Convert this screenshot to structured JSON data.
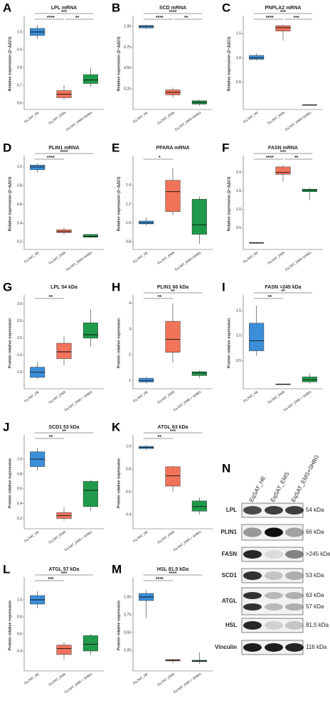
{
  "chart_data": [
    {
      "type": "box",
      "letter": "A",
      "title": "LPL mRNA",
      "ylabel": "Relative expression (2−ΔΔCt)",
      "categories": [
        "Eq.SAT_HE",
        "Eq.SAT_EMS",
        "Eq.SAT_EMS+SHBG"
      ],
      "ylim": [
        0.58,
        1.06
      ],
      "yticks": [
        0.6,
        0.7,
        0.8,
        0.9,
        {
          "value": 1,
          "label": "1.0"
        }
      ],
      "boxes": [
        {
          "color": "#3b8fd9",
          "low": 0.96,
          "q1": 0.98,
          "median": 1.0,
          "q3": 1.02,
          "high": 1.04
        },
        {
          "color": "#f0735a",
          "low": 0.62,
          "q1": 0.63,
          "median": 0.65,
          "q3": 0.67,
          "high": 0.7
        },
        {
          "color": "#1e9a4a",
          "low": 0.69,
          "q1": 0.71,
          "median": 0.73,
          "q3": 0.76,
          "high": 0.8
        }
      ],
      "annotations": [
        "****",
        "***",
        "**"
      ]
    },
    {
      "type": "box",
      "letter": "B",
      "title": "SCD mRNA",
      "ylabel": "Relative expression (2−ΔΔCt)",
      "categories": [
        "Eq.SAT_HE",
        "Eq.SAT_EMS",
        "Eq.SAT_EMS+SHBG"
      ],
      "ylim": [
        0.04,
        1.06
      ],
      "yticks": [
        0.25,
        {
          "value": 0.5,
          "label": "0.50"
        },
        0.75,
        {
          "value": 1,
          "label": "1.00"
        }
      ],
      "boxes": [
        {
          "color": "#3b8fd9",
          "low": 0.97,
          "q1": 0.98,
          "median": 1.0,
          "q3": 1.01,
          "high": 1.02
        },
        {
          "color": "#f0735a",
          "low": 0.15,
          "q1": 0.18,
          "median": 0.21,
          "q3": 0.24,
          "high": 0.27
        },
        {
          "color": "#1e9a4a",
          "low": 0.05,
          "q1": 0.07,
          "median": 0.09,
          "q3": 0.11,
          "high": 0.12
        }
      ],
      "annotations": [
        "****",
        "****",
        "**"
      ]
    },
    {
      "type": "box",
      "letter": "C",
      "title": "PNPLA2 mRNA",
      "ylabel": "Relative expression (2−ΔΔCt)",
      "categories": [
        "Eq.SAT_HE",
        "Eq.SAT_EMS",
        "Eq.SAT_EMS+SHBG"
      ],
      "ylim": [
        0,
        1.75
      ],
      "yticks": [
        0.5,
        {
          "value": 1,
          "label": "1.0"
        },
        1.5
      ],
      "boxes": [
        {
          "color": "#3b8fd9",
          "low": 0.95,
          "q1": 0.97,
          "median": 1.0,
          "q3": 1.05,
          "high": 1.09
        },
        {
          "color": "#f0735a",
          "low": 1.35,
          "q1": 1.55,
          "median": 1.62,
          "q3": 1.66,
          "high": 1.68
        },
        {
          "color": "#1e9a4a",
          "low": 0.02,
          "q1": 0.03,
          "median": 0.03,
          "q3": 0.04,
          "high": 0.04
        }
      ],
      "annotations": [
        "****",
        "***",
        "***"
      ]
    },
    {
      "type": "box",
      "letter": "D",
      "title": "PLIN1 mRNA",
      "ylabel": "Relative expression (2−ΔΔCt)",
      "categories": [
        "Eq.SAT_HE",
        "Eq.SAT_EMS",
        "Eq.SAT_EMS+SHBG"
      ],
      "ylim": [
        0.15,
        1.06
      ],
      "yticks": [
        0.2,
        0.4,
        0.6,
        0.8,
        {
          "value": 1,
          "label": "1.0"
        }
      ],
      "boxes": [
        {
          "color": "#3b8fd9",
          "low": 0.94,
          "q1": 0.97,
          "median": 1.0,
          "q3": 1.02,
          "high": 1.04
        },
        {
          "color": "#f0735a",
          "low": 0.28,
          "q1": 0.3,
          "median": 0.31,
          "q3": 0.33,
          "high": 0.35
        },
        {
          "color": "#1e9a4a",
          "low": 0.24,
          "q1": 0.25,
          "median": 0.26,
          "q3": 0.28,
          "high": 0.28
        }
      ],
      "annotations": [
        "****",
        "****"
      ]
    },
    {
      "type": "box",
      "letter": "E",
      "title": "PPARA mRNA",
      "ylabel": "Relative expression (2−ΔΔCt)",
      "categories": [
        "Eq.SAT_HE",
        "Eq.SAT_EMS",
        "Eq.SAT_EMS+SHBG"
      ],
      "ylim": [
        0.75,
        1.65
      ],
      "yticks": [
        0.8,
        {
          "value": 1,
          "label": "1.0"
        },
        1.2,
        1.4
      ],
      "boxes": [
        {
          "color": "#3b8fd9",
          "low": 0.97,
          "q1": 0.99,
          "median": 1.0,
          "q3": 1.02,
          "high": 1.06
        },
        {
          "color": "#f0735a",
          "low": 1.08,
          "q1": 1.12,
          "median": 1.33,
          "q3": 1.45,
          "high": 1.58
        },
        {
          "color": "#1e9a4a",
          "low": 0.78,
          "q1": 0.88,
          "median": 0.98,
          "q3": 1.25,
          "high": 1.28
        }
      ],
      "annotations": [
        "*"
      ]
    },
    {
      "type": "box",
      "letter": "F",
      "title": "FASN mRNA",
      "ylabel": "Relative expression (2−ΔΔCt)",
      "categories": [
        "Eq.SAT_HE",
        "Eq.SAT_EMS",
        "Eq.SAT_EMS+SHBG"
      ],
      "ylim": [
        0,
        2.3
      ],
      "yticks": [
        0.5,
        {
          "value": 1,
          "label": "1.0"
        },
        1.5,
        {
          "value": 2,
          "label": "2.0"
        }
      ],
      "boxes": [
        {
          "color": "#3b8fd9",
          "low": 0.08,
          "q1": 0.09,
          "median": 0.1,
          "q3": 0.11,
          "high": 0.12
        },
        {
          "color": "#f0735a",
          "low": 1.75,
          "q1": 1.95,
          "median": 2.0,
          "q3": 2.15,
          "high": 2.2
        },
        {
          "color": "#1e9a4a",
          "low": 1.25,
          "q1": 1.48,
          "median": 1.52,
          "q3": 1.55,
          "high": 1.58
        }
      ],
      "annotations": [
        "****",
        "***",
        "**"
      ]
    },
    {
      "type": "box",
      "letter": "G",
      "title": "LPL 54 kDa",
      "ylabel": "Protein relative expression",
      "categories": [
        "Eq.SAT_HE",
        "Eq.SAT_EMS",
        "Eq.SAT_EMS + SHBG"
      ],
      "ylim": [
        0.6,
        3.1
      ],
      "yticks": [
        {
          "value": 1,
          "label": "1.0"
        },
        1.5,
        {
          "value": 2,
          "label": "2.0"
        },
        2.5,
        {
          "value": 3,
          "label": "3.0"
        }
      ],
      "boxes": [
        {
          "color": "#3b8fd9",
          "low": 0.8,
          "q1": 0.85,
          "median": 1.0,
          "q3": 1.15,
          "high": 1.3
        },
        {
          "color": "#f0735a",
          "low": 1.2,
          "q1": 1.4,
          "median": 1.6,
          "q3": 1.85,
          "high": 2.05
        },
        {
          "color": "#1e9a4a",
          "low": 1.75,
          "q1": 2.0,
          "median": 2.1,
          "q3": 2.45,
          "high": 2.85
        }
      ],
      "annotations": [
        "**"
      ]
    },
    {
      "type": "box",
      "letter": "H",
      "title": "PLIN1 66 kDa",
      "ylabel": "Protein relative expression",
      "categories": [
        "Eq.SAT_HE",
        "Eq.SAT_EMS",
        "Eq.SAT_EMS + SHBG"
      ],
      "ylim": [
        0.8,
        4.1
      ],
      "yticks": [
        1,
        2,
        3,
        4
      ],
      "boxes": [
        {
          "color": "#3b8fd9",
          "low": 0.9,
          "q1": 0.95,
          "median": 1.0,
          "q3": 1.1,
          "high": 1.15
        },
        {
          "color": "#f0735a",
          "low": 1.7,
          "q1": 2.1,
          "median": 2.6,
          "q3": 3.3,
          "high": 4.0
        },
        {
          "color": "#1e9a4a",
          "low": 1.1,
          "q1": 1.2,
          "median": 1.3,
          "q3": 1.35,
          "high": 1.4
        }
      ],
      "annotations": [
        "**",
        "**"
      ]
    },
    {
      "type": "box",
      "letter": "I",
      "title": "FASN >245 kDa",
      "ylabel": "Protein relative expression",
      "categories": [
        "Eq.SAT_HE",
        "Eq.SAT_EMS",
        "Eq.SAT_EMS + SHBG"
      ],
      "ylim": [
        0,
        1.7
      ],
      "yticks": [
        0.5,
        {
          "value": 1,
          "label": "1.0"
        },
        1.5
      ],
      "boxes": [
        {
          "color": "#3b8fd9",
          "low": 0.6,
          "q1": 0.7,
          "median": 0.9,
          "q3": 1.25,
          "high": 1.6
        },
        {
          "color": "#f0735a",
          "low": 0.02,
          "q1": 0.03,
          "median": 0.03,
          "q3": 0.04,
          "high": 0.04
        },
        {
          "color": "#1e9a4a",
          "low": 0.05,
          "q1": 0.08,
          "median": 0.12,
          "q3": 0.18,
          "high": 0.25
        }
      ],
      "annotations": [
        "**",
        "**"
      ]
    },
    {
      "type": "box",
      "letter": "J",
      "title": "SCD1 53 kDa",
      "ylabel": "Protein relative expression",
      "categories": [
        "Eq.SAT_HE",
        "Eq.SAT_EMS",
        "Eq.SAT_EMS + SHBG"
      ],
      "ylim": [
        0.1,
        1.25
      ],
      "yticks": [
        0.2,
        0.4,
        0.6,
        0.8,
        {
          "value": 1,
          "label": "1.0"
        }
      ],
      "boxes": [
        {
          "color": "#3b8fd9",
          "low": 0.85,
          "q1": 0.9,
          "median": 1.0,
          "q3": 1.1,
          "high": 1.15
        },
        {
          "color": "#f0735a",
          "low": 0.17,
          "q1": 0.2,
          "median": 0.24,
          "q3": 0.28,
          "high": 0.35
        },
        {
          "color": "#1e9a4a",
          "low": 0.3,
          "q1": 0.36,
          "median": 0.58,
          "q3": 0.7,
          "high": 0.72
        }
      ],
      "annotations": [
        "**",
        "**"
      ]
    },
    {
      "type": "box",
      "letter": "K",
      "title": "ATGL 63 kDa",
      "ylabel": "Protein relative expression",
      "categories": [
        "Eq.SAT_HE",
        "Eq.SAT_EMS",
        "Eq.SAT_EMS + SHBG"
      ],
      "ylim": [
        0.3,
        1.05
      ],
      "yticks": [
        0.4,
        0.6,
        0.8,
        {
          "value": 1,
          "label": "1.0"
        }
      ],
      "boxes": [
        {
          "color": "#3b8fd9",
          "low": 0.97,
          "q1": 0.98,
          "median": 0.99,
          "q3": 1.0,
          "high": 1.01
        },
        {
          "color": "#f0735a",
          "low": 0.6,
          "q1": 0.65,
          "median": 0.74,
          "q3": 0.82,
          "high": 0.83
        },
        {
          "color": "#1e9a4a",
          "low": 0.4,
          "q1": 0.43,
          "median": 0.47,
          "q3": 0.52,
          "high": 0.55
        }
      ],
      "annotations": [
        "**",
        "***"
      ]
    },
    {
      "type": "box",
      "letter": "L",
      "title": "ATGL 57 kDa",
      "ylabel": "Protein relative expression",
      "categories": [
        "Eq.SAT_HE",
        "Eq.SAT_EMS",
        "Eq.SAT_EMS + SHBG"
      ],
      "ylim": [
        0.2,
        1.2
      ],
      "yticks": [
        0.4,
        0.6,
        0.8,
        {
          "value": 1,
          "label": "1.0"
        }
      ],
      "boxes": [
        {
          "color": "#3b8fd9",
          "low": 0.9,
          "q1": 0.95,
          "median": 1.0,
          "q3": 1.05,
          "high": 1.1
        },
        {
          "color": "#f0735a",
          "low": 0.3,
          "q1": 0.36,
          "median": 0.43,
          "q3": 0.47,
          "high": 0.5
        },
        {
          "color": "#1e9a4a",
          "low": 0.35,
          "q1": 0.4,
          "median": 0.48,
          "q3": 0.58,
          "high": 0.6
        }
      ],
      "annotations": [
        "***",
        "***"
      ]
    },
    {
      "type": "box",
      "letter": "M",
      "title": "HSL 81.5 kDa",
      "ylabel": "Protein relative expression",
      "categories": [
        "Eq.SAT_HE",
        "Eq.SAT_EMS",
        "Eq.SAT_EMS + SHBG"
      ],
      "ylim": [
        0,
        1.2
      ],
      "yticks": [
        0.25,
        {
          "value": 0.5,
          "label": "0.50"
        },
        0.75,
        {
          "value": 1,
          "label": "1.00"
        }
      ],
      "boxes": [
        {
          "color": "#3b8fd9",
          "low": 0.7,
          "q1": 0.95,
          "median": 1.0,
          "q3": 1.05,
          "high": 1.1
        },
        {
          "color": "#f0735a",
          "low": 0.07,
          "q1": 0.1,
          "median": 0.11,
          "q3": 0.12,
          "high": 0.13
        },
        {
          "color": "#1e9a4a",
          "low": 0.06,
          "q1": 0.09,
          "median": 0.1,
          "q3": 0.11,
          "high": 0.22
        }
      ],
      "annotations": [
        "****",
        "****"
      ]
    }
  ],
  "blot": {
    "letter": "N",
    "lanes": [
      "EqSAT_HE",
      "EqSAT_EMS",
      "EqSAT_EMS+SHBG"
    ],
    "rows": [
      {
        "protein": "LPL",
        "sizes": [
          "54 kDa"
        ]
      },
      {
        "protein": "PLIN1",
        "sizes": [
          "66 kDa"
        ]
      },
      {
        "protein": "FASN",
        "sizes": [
          ">245 kDa"
        ]
      },
      {
        "protein": "SCD1",
        "sizes": [
          "53 kDa"
        ]
      },
      {
        "protein": "ATGL",
        "sizes": [
          "63 kDa",
          "57 kDa"
        ]
      },
      {
        "protein": "HSL",
        "sizes": [
          "81,5 kDa"
        ]
      },
      {
        "protein": "Vinculin",
        "sizes": [
          "116 kDa"
        ]
      }
    ]
  }
}
